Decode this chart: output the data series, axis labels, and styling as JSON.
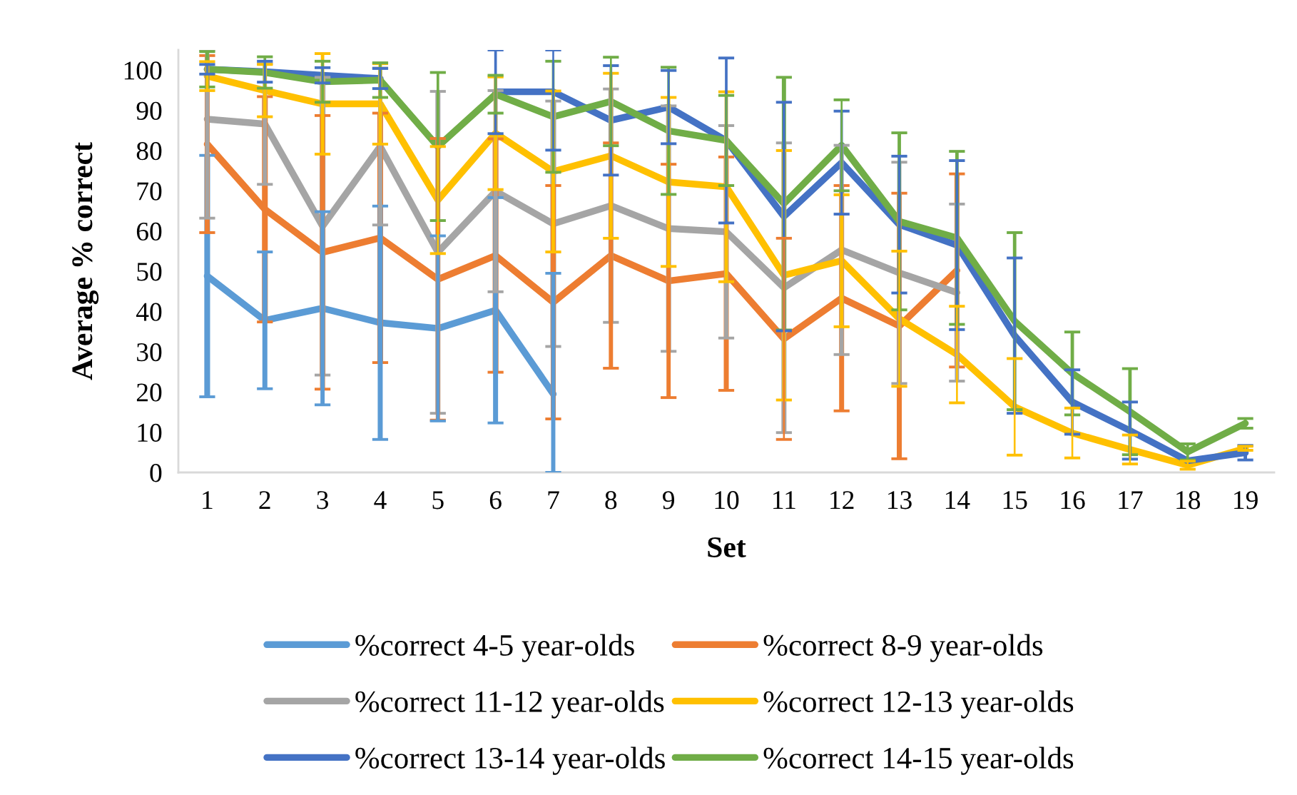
{
  "chart_data": {
    "type": "line",
    "xlabel": "Set",
    "ylabel": "Average % correct",
    "categories": [
      "1",
      "2",
      "3",
      "4",
      "5",
      "6",
      "7",
      "8",
      "9",
      "10",
      "11",
      "12",
      "13",
      "14",
      "15",
      "16",
      "17",
      "18",
      "19"
    ],
    "ylim": [
      0,
      105
    ],
    "yticks": [
      0,
      10,
      20,
      30,
      40,
      50,
      60,
      70,
      80,
      90,
      100
    ],
    "grid": false,
    "legend": "bottom",
    "line_style": "solid",
    "series": [
      {
        "name": "%correct 4-5 year-olds",
        "color": "#5b9bd5",
        "values": [
          48.8,
          37.8,
          40.8,
          37.2,
          35.8,
          40.3,
          19.5,
          null,
          null,
          null,
          null,
          null,
          null,
          null,
          null,
          null,
          null,
          null,
          null
        ],
        "errors": [
          30,
          17,
          24,
          29,
          23,
          28,
          [
            0,
            49.5
          ],
          null,
          null,
          null,
          null,
          null,
          null,
          null,
          null,
          null,
          null,
          null,
          null
        ]
      },
      {
        "name": "%correct 8-9 year-olds",
        "color": "#ed7d31",
        "values": [
          81.6,
          65.4,
          54.7,
          58.3,
          48.0,
          53.9,
          42.3,
          53.9,
          47.6,
          49.4,
          33.2,
          43.3,
          36.4,
          50.2,
          null,
          null,
          null,
          null,
          null
        ],
        "errors": [
          22,
          28,
          34,
          31,
          35,
          29,
          29,
          28,
          29,
          29,
          25,
          28,
          33,
          24,
          null,
          null,
          null,
          null,
          null
        ]
      },
      {
        "name": "%correct 11-12 year-olds",
        "color": "#a5a5a5",
        "values": [
          87.8,
          86.6,
          61.2,
          81.0,
          54.7,
          69.9,
          61.8,
          66.3,
          60.6,
          59.8,
          45.9,
          55.3,
          49.6,
          44.7,
          null,
          null,
          null,
          null,
          null
        ],
        "errors": [
          [
            63.2,
            105
          ],
          15,
          37,
          19.5,
          40,
          25,
          30.5,
          29,
          30.5,
          26.4,
          36,
          26,
          27.5,
          22,
          null,
          null,
          null,
          null,
          null
        ]
      },
      {
        "name": "%correct 12-13 year-olds",
        "color": "#ffc000",
        "values": [
          98.5,
          94.9,
          91.6,
          91.6,
          67.7,
          84.3,
          74.8,
          78.7,
          72.2,
          71.0,
          49.0,
          52.6,
          38.2,
          29.3,
          16.3,
          9.8,
          5.7,
          1.8,
          6.0
        ],
        "errors": [
          3.6,
          6.5,
          12.5,
          10,
          13.3,
          14,
          20,
          20.5,
          21,
          23.6,
          31,
          16.4,
          16.8,
          12,
          12,
          6.2,
          3.6,
          1,
          0.5
        ]
      },
      {
        "name": "%correct 13-14 year-olds",
        "color": "#4472c4",
        "values": [
          100.2,
          99.6,
          98.7,
          97.9,
          null,
          94.6,
          94.6,
          87.5,
          90.8,
          82.5,
          63.6,
          77.0,
          61.6,
          56.5,
          34.0,
          17.5,
          10.4,
          2.9,
          4.9
        ],
        "errors": [
          1.2,
          2.6,
          1.9,
          2.5,
          null,
          10.4,
          [
            80.1,
            105
          ],
          13.6,
          9.1,
          20.5,
          28.4,
          12.8,
          17,
          21,
          19.3,
          8,
          7.1,
          null,
          1.8
        ]
      },
      {
        "name": "%correct 14-15 year-olds",
        "color": "#70ad47",
        "values": [
          100.2,
          99.4,
          97.1,
          97.5,
          81.0,
          94.0,
          88.4,
          92.2,
          84.9,
          82.5,
          66.8,
          81.3,
          62.4,
          58.3,
          37.6,
          24.6,
          15.1,
          5.1,
          12.2
        ],
        "errors": [
          4.4,
          3.9,
          5.1,
          4.3,
          18.4,
          4.7,
          13.8,
          11,
          15.8,
          11.2,
          31.4,
          11.3,
          22,
          21.5,
          22,
          10.3,
          10.7,
          2,
          1.2
        ]
      }
    ]
  }
}
